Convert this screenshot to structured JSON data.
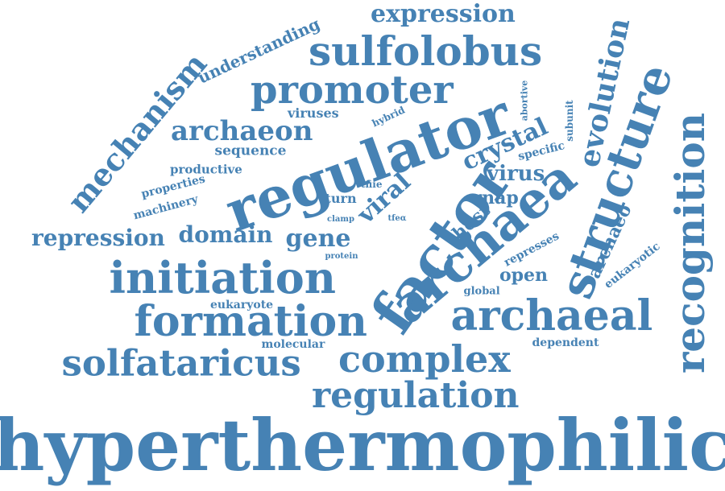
{
  "color": "#4682b4",
  "words": [
    {
      "text": "hyperthermophilic"
    },
    {
      "text": "regulator"
    },
    {
      "text": "factor"
    },
    {
      "text": "archaea"
    },
    {
      "text": "structure"
    },
    {
      "text": "recognition"
    },
    {
      "text": "initiation"
    },
    {
      "text": "formation"
    },
    {
      "text": "archaeal"
    },
    {
      "text": "sulfolobus"
    },
    {
      "text": "promoter"
    },
    {
      "text": "solfataricus"
    },
    {
      "text": "complex"
    },
    {
      "text": "regulation"
    },
    {
      "text": "mechanism"
    },
    {
      "text": "expression"
    },
    {
      "text": "archaeon"
    },
    {
      "text": "evolution"
    },
    {
      "text": "repression"
    },
    {
      "text": "domain"
    },
    {
      "text": "gene"
    },
    {
      "text": "viral"
    },
    {
      "text": "crystal"
    },
    {
      "text": "virus"
    },
    {
      "text": "understanding"
    },
    {
      "text": "sequence"
    },
    {
      "text": "viruses"
    },
    {
      "text": "productive"
    },
    {
      "text": "properties"
    },
    {
      "text": "machinery"
    },
    {
      "text": "turn"
    },
    {
      "text": "tfiie"
    },
    {
      "text": "hybrid"
    },
    {
      "text": "clamp"
    },
    {
      "text": "tfeα"
    },
    {
      "text": "protein"
    },
    {
      "text": "rnap"
    },
    {
      "text": "host"
    },
    {
      "text": "open"
    },
    {
      "text": "global"
    },
    {
      "text": "represses"
    },
    {
      "text": "eukaryote"
    },
    {
      "text": "molecular"
    },
    {
      "text": "dependent"
    },
    {
      "text": "archaeo"
    },
    {
      "text": "eukaryotic"
    },
    {
      "text": "specific"
    },
    {
      "text": "subunit"
    },
    {
      "text": "abortive"
    }
  ]
}
